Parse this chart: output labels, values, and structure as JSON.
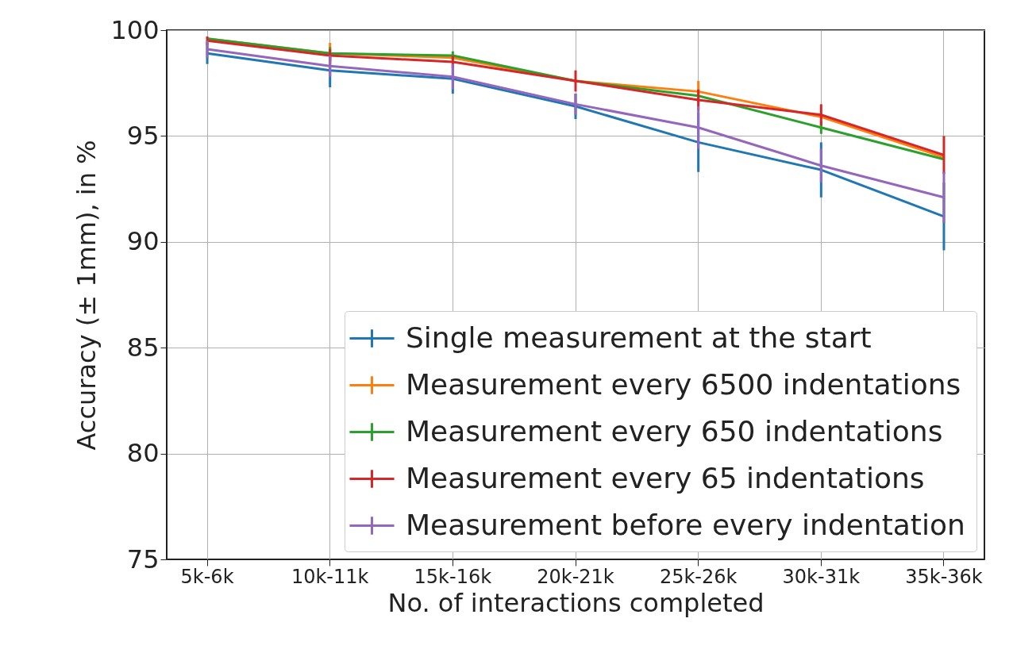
{
  "chart_data": {
    "type": "line",
    "xlabel": "No. of interactions completed",
    "ylabel": "Accuracy (± 1mm), in %",
    "categories": [
      "5k-6k",
      "10k-11k",
      "15k-16k",
      "20k-21k",
      "25k-26k",
      "30k-31k",
      "35k-36k"
    ],
    "ylim": [
      75,
      100
    ],
    "yticks": [
      75,
      80,
      85,
      90,
      95,
      100
    ],
    "grid": true,
    "legend": "bottom right",
    "marker": "none",
    "line_style": "solid",
    "series": [
      {
        "name": "Single measurement at the start",
        "color": "#1f77b4",
        "values": [
          98.9,
          98.1,
          97.7,
          96.4,
          94.7,
          93.4,
          91.2
        ],
        "errors": [
          0.5,
          0.8,
          0.7,
          0.6,
          1.4,
          1.3,
          1.6
        ]
      },
      {
        "name": "Measurement every 6500 indentations",
        "color": "#ff7f0e",
        "values": [
          99.6,
          98.9,
          98.7,
          97.6,
          97.1,
          95.9,
          94.0
        ],
        "errors": [
          null,
          0.5,
          null,
          null,
          0.5,
          null,
          null
        ]
      },
      {
        "name": "Measurement every 650 indentations",
        "color": "#2ca02c",
        "values": [
          99.6,
          98.9,
          98.8,
          97.6,
          96.9,
          95.4,
          93.9
        ],
        "errors": [
          null,
          0.3,
          0.2,
          null,
          null,
          0.3,
          null
        ]
      },
      {
        "name": "Measurement every 65 indentations",
        "color": "#d62728",
        "values": [
          99.5,
          98.8,
          98.5,
          97.6,
          96.7,
          96.0,
          94.1
        ],
        "errors": [
          0.2,
          0.3,
          0.3,
          0.5,
          0.5,
          0.5,
          0.9
        ]
      },
      {
        "name": "Measurement before every indentation",
        "color": "#9467bd",
        "values": [
          99.1,
          98.3,
          97.8,
          96.5,
          95.4,
          93.6,
          92.1
        ],
        "errors": [
          0.4,
          0.5,
          0.6,
          0.5,
          1.0,
          0.8,
          1.2
        ]
      }
    ]
  }
}
